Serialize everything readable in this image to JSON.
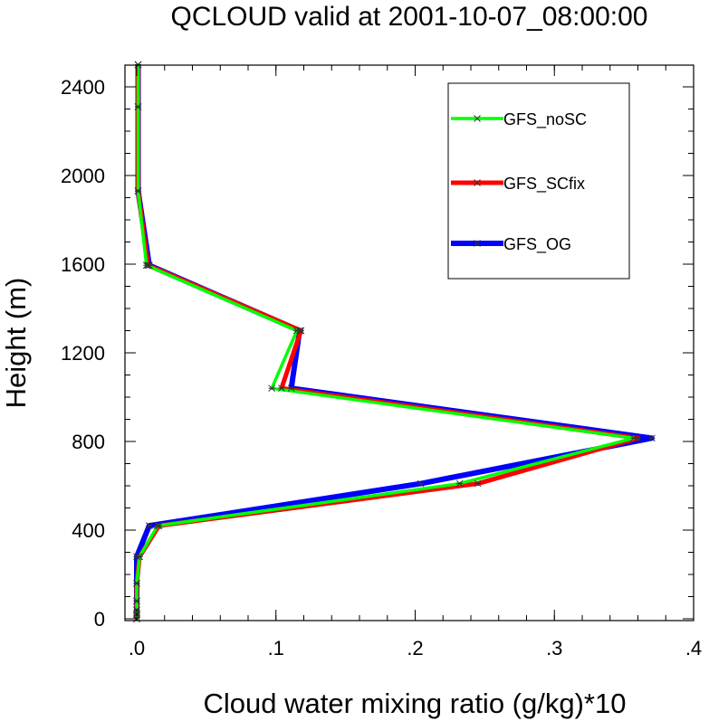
{
  "chart_data": {
    "type": "line",
    "title": "QCLOUD valid at 2001-10-07_08:00:00",
    "xlabel": "Cloud water mixing ratio (g/kg)*10",
    "ylabel": "Height (m)",
    "xlim": [
      0,
      0.4
    ],
    "ylim": [
      0,
      2500
    ],
    "x_ticks": [
      0,
      0.1,
      0.2,
      0.3,
      0.4
    ],
    "x_tick_labels": [
      ".0",
      ".1",
      ".2",
      ".3",
      ".4"
    ],
    "x_minor_step": 0.02,
    "y_ticks": [
      0,
      400,
      800,
      1200,
      1600,
      2000,
      2400
    ],
    "y_tick_labels": [
      "0",
      "400",
      "800",
      "1200",
      "1600",
      "2000",
      "2400"
    ],
    "y_minor_step": 100,
    "grid": false,
    "legend_position": "top-right",
    "heights": [
      0,
      20,
      40,
      80,
      160,
      280,
      420,
      610,
      815,
      1040,
      1300,
      1595,
      1930,
      2310,
      2500
    ],
    "series": [
      {
        "name": "GFS_noSC",
        "color": "#00ff00",
        "values": [
          0,
          0,
          0,
          0,
          0,
          0.002,
          0.015,
          0.232,
          0.357,
          0.097,
          0.115,
          0.007,
          0.001,
          0.001,
          0.001
        ]
      },
      {
        "name": "GFS_SCfix",
        "color": "#ff0000",
        "values": [
          0,
          0,
          0,
          0,
          0,
          0.002,
          0.016,
          0.245,
          0.36,
          0.104,
          0.118,
          0.008,
          0.001,
          0.001,
          0.001
        ]
      },
      {
        "name": "GFS_OG",
        "color": "#0000ff",
        "values": [
          0,
          0,
          0,
          0,
          0,
          0.0,
          0.009,
          0.204,
          0.37,
          0.111,
          0.117,
          0.009,
          0.001,
          0.001,
          0.001
        ]
      }
    ]
  }
}
